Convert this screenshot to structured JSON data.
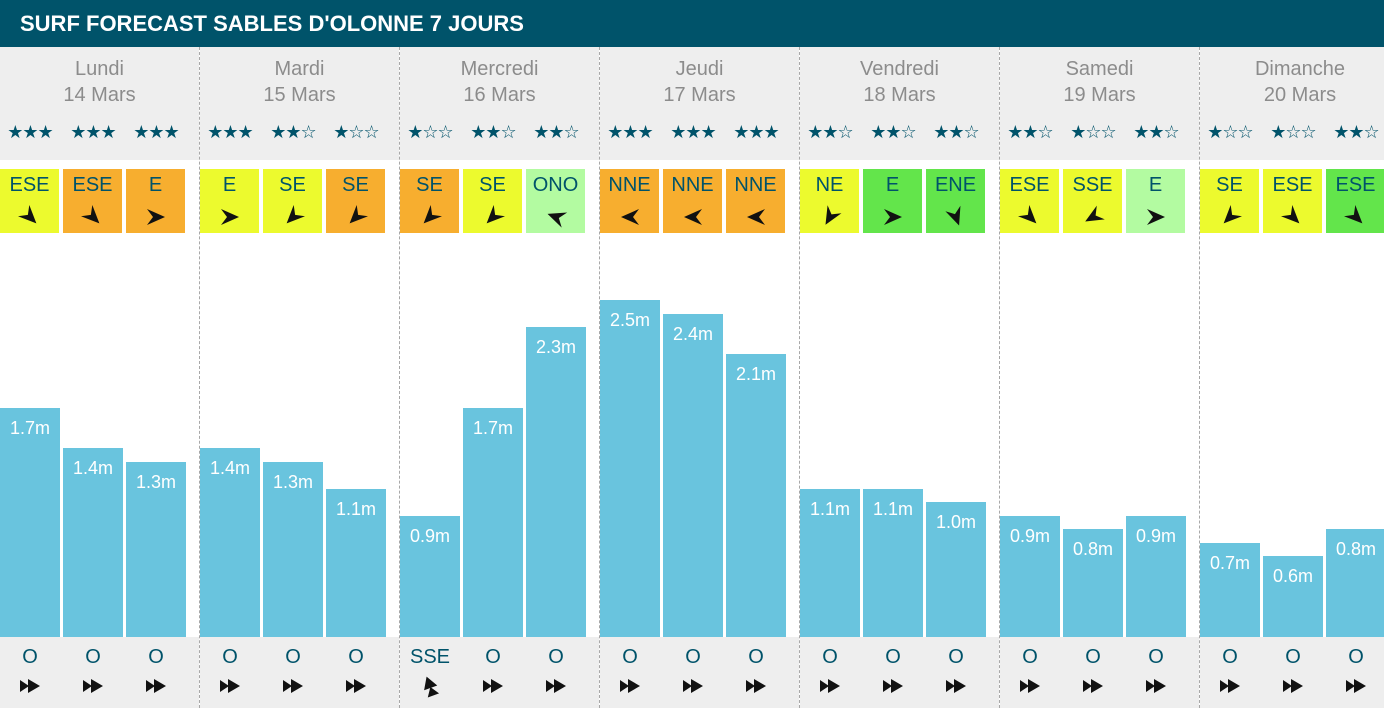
{
  "title": "SURF FORECAST SABLES D'OLONNE 7 JOURS",
  "colors": {
    "header_bg": "#00536a",
    "text_dark": "#00536a",
    "bar": "#69c4de",
    "yellow": "#ecfa2e",
    "orange": "#f7ae2f",
    "light_green": "#b3fba1",
    "green": "#63e54b"
  },
  "chart_data": {
    "type": "bar",
    "unit": "m",
    "ylim": [
      0,
      3.0
    ],
    "days": [
      {
        "day": "Lundi",
        "date": "14 Mars",
        "slots": [
          {
            "stars": "★★★",
            "rating": 3,
            "wind": "ESE",
            "wind_color": "yellow",
            "wind_arrow_deg": 225,
            "height": 1.7,
            "label": "1.7m",
            "swell": "O",
            "swell_arrow_deg": 0
          },
          {
            "stars": "★★★",
            "rating": 3,
            "wind": "ESE",
            "wind_color": "orange",
            "wind_arrow_deg": 225,
            "height": 1.4,
            "label": "1.4m",
            "swell": "O",
            "swell_arrow_deg": 0
          },
          {
            "stars": "★★★",
            "rating": 3,
            "wind": "E",
            "wind_color": "orange",
            "wind_arrow_deg": 180,
            "height": 1.3,
            "label": "1.3m",
            "swell": "O",
            "swell_arrow_deg": 0
          }
        ]
      },
      {
        "day": "Mardi",
        "date": "15 Mars",
        "slots": [
          {
            "stars": "★★★",
            "rating": 3,
            "wind": "E",
            "wind_color": "yellow",
            "wind_arrow_deg": 180,
            "height": 1.4,
            "label": "1.4m",
            "swell": "O",
            "swell_arrow_deg": 0
          },
          {
            "stars": "★★☆",
            "rating": 2,
            "wind": "SE",
            "wind_color": "yellow",
            "wind_arrow_deg": 315,
            "height": 1.3,
            "label": "1.3m",
            "swell": "O",
            "swell_arrow_deg": 0
          },
          {
            "stars": "★☆☆",
            "rating": 1,
            "wind": "SE",
            "wind_color": "orange",
            "wind_arrow_deg": 315,
            "height": 1.1,
            "label": "1.1m",
            "swell": "O",
            "swell_arrow_deg": 0
          }
        ]
      },
      {
        "day": "Mercredi",
        "date": "16 Mars",
        "slots": [
          {
            "stars": "★☆☆",
            "rating": 1,
            "wind": "SE",
            "wind_color": "orange",
            "wind_arrow_deg": 315,
            "height": 0.9,
            "label": "0.9m",
            "swell": "SSE",
            "swell_arrow_deg": 250
          },
          {
            "stars": "★★☆",
            "rating": 2,
            "wind": "SE",
            "wind_color": "yellow",
            "wind_arrow_deg": 315,
            "height": 1.7,
            "label": "1.7m",
            "swell": "O",
            "swell_arrow_deg": 0
          },
          {
            "stars": "★★☆",
            "rating": 2,
            "wind": "ONO",
            "wind_color": "light_green",
            "wind_arrow_deg": 20,
            "height": 2.3,
            "label": "2.3m",
            "swell": "O",
            "swell_arrow_deg": 0
          }
        ]
      },
      {
        "day": "Jeudi",
        "date": "17 Mars",
        "slots": [
          {
            "stars": "★★★",
            "rating": 3,
            "wind": "NNE",
            "wind_color": "orange",
            "wind_arrow_deg": 0,
            "height": 2.5,
            "label": "2.5m",
            "swell": "O",
            "swell_arrow_deg": 0
          },
          {
            "stars": "★★★",
            "rating": 3,
            "wind": "NNE",
            "wind_color": "orange",
            "wind_arrow_deg": 0,
            "height": 2.4,
            "label": "2.4m",
            "swell": "O",
            "swell_arrow_deg": 0
          },
          {
            "stars": "★★★",
            "rating": 3,
            "wind": "NNE",
            "wind_color": "orange",
            "wind_arrow_deg": 0,
            "height": 2.1,
            "label": "2.1m",
            "swell": "O",
            "swell_arrow_deg": 0
          }
        ]
      },
      {
        "day": "Vendredi",
        "date": "18 Mars",
        "slots": [
          {
            "stars": "★★☆",
            "rating": 2,
            "wind": "NE",
            "wind_color": "yellow",
            "wind_arrow_deg": 300,
            "height": 1.1,
            "label": "1.1m",
            "swell": "O",
            "swell_arrow_deg": 0
          },
          {
            "stars": "★★☆",
            "rating": 2,
            "wind": "E",
            "wind_color": "green",
            "wind_arrow_deg": 180,
            "height": 1.1,
            "label": "1.1m",
            "swell": "O",
            "swell_arrow_deg": 0
          },
          {
            "stars": "★★☆",
            "rating": 2,
            "wind": "ENE",
            "wind_color": "green",
            "wind_arrow_deg": 250,
            "height": 1.0,
            "label": "1.0m",
            "swell": "O",
            "swell_arrow_deg": 0
          }
        ]
      },
      {
        "day": "Samedi",
        "date": "19 Mars",
        "slots": [
          {
            "stars": "★★☆",
            "rating": 2,
            "wind": "ESE",
            "wind_color": "yellow",
            "wind_arrow_deg": 225,
            "height": 0.9,
            "label": "0.9m",
            "swell": "O",
            "swell_arrow_deg": 0
          },
          {
            "stars": "★☆☆",
            "rating": 1,
            "wind": "SSE",
            "wind_color": "yellow",
            "wind_arrow_deg": 330,
            "height": 0.8,
            "label": "0.8m",
            "swell": "O",
            "swell_arrow_deg": 0
          },
          {
            "stars": "★★☆",
            "rating": 2,
            "wind": "E",
            "wind_color": "light_green",
            "wind_arrow_deg": 180,
            "height": 0.9,
            "label": "0.9m",
            "swell": "O",
            "swell_arrow_deg": 0
          }
        ]
      },
      {
        "day": "Dimanche",
        "date": "20 Mars",
        "slots": [
          {
            "stars": "★☆☆",
            "rating": 1,
            "wind": "SE",
            "wind_color": "yellow",
            "wind_arrow_deg": 315,
            "height": 0.7,
            "label": "0.7m",
            "swell": "O",
            "swell_arrow_deg": 0
          },
          {
            "stars": "★☆☆",
            "rating": 1,
            "wind": "ESE",
            "wind_color": "yellow",
            "wind_arrow_deg": 225,
            "height": 0.6,
            "label": "0.6m",
            "swell": "O",
            "swell_arrow_deg": 0
          },
          {
            "stars": "★★☆",
            "rating": 2,
            "wind": "ESE",
            "wind_color": "green",
            "wind_arrow_deg": 225,
            "height": 0.8,
            "label": "0.8m",
            "swell": "O",
            "swell_arrow_deg": 0
          }
        ]
      }
    ]
  }
}
